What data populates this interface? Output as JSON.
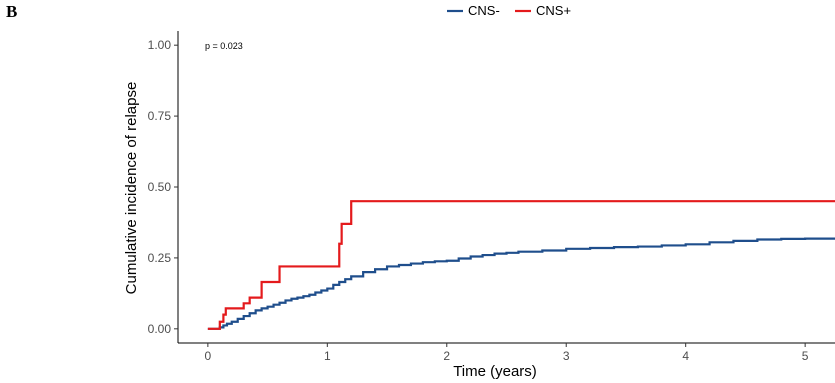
{
  "panel_label": "B",
  "chart_data": {
    "type": "line",
    "step": true,
    "xlabel": "Time (years)",
    "ylabel": "Cumulative incidence of relapse",
    "xlim": [
      -0.25,
      5.25
    ],
    "ylim": [
      -0.05,
      1.05
    ],
    "xticks": [
      0,
      1,
      2,
      3,
      4,
      5
    ],
    "yticks": [
      0.0,
      0.25,
      0.5,
      0.75,
      1.0
    ],
    "ytick_labels": [
      "0.00",
      "0.25",
      "0.50",
      "0.75",
      "1.00"
    ],
    "grid": false,
    "legend_position": "top",
    "annotation": "p = 0.023",
    "series": [
      {
        "name": "CNS-",
        "color": "#1f4e8c",
        "x": [
          0,
          0.08,
          0.1,
          0.13,
          0.16,
          0.2,
          0.25,
          0.3,
          0.35,
          0.4,
          0.45,
          0.5,
          0.55,
          0.6,
          0.65,
          0.7,
          0.75,
          0.8,
          0.85,
          0.9,
          0.95,
          1.0,
          1.05,
          1.1,
          1.15,
          1.2,
          1.3,
          1.4,
          1.5,
          1.6,
          1.7,
          1.8,
          1.9,
          2.0,
          2.1,
          2.2,
          2.3,
          2.4,
          2.5,
          2.6,
          2.8,
          3.0,
          3.2,
          3.4,
          3.6,
          3.8,
          4.0,
          4.2,
          4.4,
          4.6,
          4.8,
          5.0,
          5.25
        ],
        "values": [
          0,
          0,
          0.005,
          0.012,
          0.018,
          0.025,
          0.035,
          0.045,
          0.055,
          0.065,
          0.072,
          0.078,
          0.085,
          0.092,
          0.1,
          0.106,
          0.11,
          0.115,
          0.12,
          0.128,
          0.135,
          0.142,
          0.155,
          0.165,
          0.175,
          0.185,
          0.2,
          0.21,
          0.22,
          0.225,
          0.23,
          0.235,
          0.238,
          0.24,
          0.248,
          0.255,
          0.26,
          0.265,
          0.268,
          0.272,
          0.276,
          0.282,
          0.285,
          0.288,
          0.29,
          0.294,
          0.298,
          0.305,
          0.31,
          0.315,
          0.317,
          0.318,
          0.318
        ]
      },
      {
        "name": "CNS+",
        "color": "#e41a1c",
        "x": [
          0,
          0.08,
          0.1,
          0.13,
          0.15,
          0.2,
          0.25,
          0.3,
          0.35,
          0.4,
          0.45,
          0.5,
          0.6,
          0.7,
          0.8,
          0.9,
          1.0,
          1.08,
          1.1,
          1.12,
          1.15,
          1.2,
          2.0,
          3.0,
          4.0,
          5.0,
          5.25
        ],
        "values": [
          0,
          0,
          0.025,
          0.05,
          0.072,
          0.072,
          0.072,
          0.09,
          0.11,
          0.11,
          0.165,
          0.165,
          0.22,
          0.22,
          0.22,
          0.22,
          0.22,
          0.22,
          0.3,
          0.37,
          0.37,
          0.45,
          0.45,
          0.45,
          0.45,
          0.45,
          0.45
        ]
      }
    ]
  }
}
